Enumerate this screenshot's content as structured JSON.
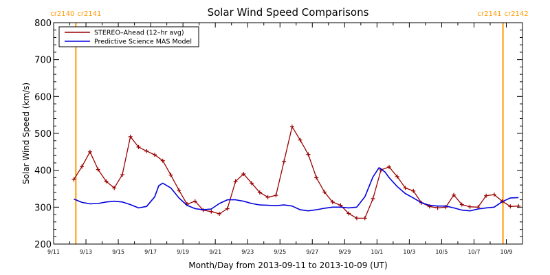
{
  "chart_data": {
    "type": "line",
    "title": "Solar Wind Speed Comparisons",
    "xlabel": "Month/Day from 2013-09-11 to 2013-10-09 (UT)",
    "ylabel": "Solar Wind Speed (km/s)",
    "xlim": [
      "2013-09-11",
      "2013-10-09"
    ],
    "ylim": [
      200,
      800
    ],
    "yticks": [
      200,
      300,
      400,
      500,
      600,
      700,
      800
    ],
    "xtick_labels": [
      "9/11",
      "9/13",
      "9/15",
      "9/17",
      "9/19",
      "9/21",
      "9/23",
      "9/25",
      "9/27",
      "9/29",
      "10/1",
      "10/3",
      "10/5",
      "10/7",
      "10/9"
    ],
    "grid": false,
    "legend_position": "top-left",
    "carrington_markers": [
      {
        "date": "2013-09-12T09:00",
        "label_left": "cr2140",
        "label_right": "cr2141",
        "color": "#ff9900"
      },
      {
        "date": "2013-10-08T19:00",
        "label_left": "cr2141",
        "label_right": "cr2142",
        "color": "#ff9900"
      }
    ],
    "series": [
      {
        "name": "STEREO–Ahead (12–hr avg)",
        "color": "#990000",
        "marker": "plus",
        "points": [
          [
            "2013-09-12T06:00",
            375
          ],
          [
            "2013-09-12T18:00",
            410
          ],
          [
            "2013-09-13T06:00",
            450
          ],
          [
            "2013-09-13T18:00",
            402
          ],
          [
            "2013-09-14T06:00",
            370
          ],
          [
            "2013-09-14T18:00",
            352
          ],
          [
            "2013-09-15T06:00",
            388
          ],
          [
            "2013-09-15T18:00",
            491
          ],
          [
            "2013-09-16T06:00",
            463
          ],
          [
            "2013-09-16T18:00",
            452
          ],
          [
            "2013-09-17T06:00",
            442
          ],
          [
            "2013-09-17T18:00",
            426
          ],
          [
            "2013-09-18T06:00",
            387
          ],
          [
            "2013-09-18T18:00",
            346
          ],
          [
            "2013-09-19T06:00",
            308
          ],
          [
            "2013-09-19T18:00",
            316
          ],
          [
            "2013-09-20T06:00",
            292
          ],
          [
            "2013-09-20T18:00",
            288
          ],
          [
            "2013-09-21T06:00",
            282
          ],
          [
            "2013-09-21T18:00",
            296
          ],
          [
            "2013-09-22T06:00",
            370
          ],
          [
            "2013-09-22T18:00",
            390
          ],
          [
            "2013-09-23T06:00",
            365
          ],
          [
            "2013-09-23T18:00",
            340
          ],
          [
            "2013-09-24T06:00",
            327
          ],
          [
            "2013-09-24T18:00",
            332
          ],
          [
            "2013-09-25T06:00",
            424
          ],
          [
            "2013-09-25T18:00",
            518
          ],
          [
            "2013-09-26T06:00",
            482
          ],
          [
            "2013-09-26T18:00",
            443
          ],
          [
            "2013-09-27T06:00",
            380
          ],
          [
            "2013-09-27T18:00",
            341
          ],
          [
            "2013-09-28T06:00",
            314
          ],
          [
            "2013-09-28T18:00",
            305
          ],
          [
            "2013-09-29T06:00",
            283
          ],
          [
            "2013-09-29T18:00",
            270
          ],
          [
            "2013-09-30T06:00",
            270
          ],
          [
            "2013-09-30T18:00",
            323
          ],
          [
            "2013-10-01T06:00",
            401
          ],
          [
            "2013-10-01T18:00",
            409
          ],
          [
            "2013-10-02T06:00",
            383
          ],
          [
            "2013-10-02T18:00",
            352
          ],
          [
            "2013-10-03T06:00",
            344
          ],
          [
            "2013-10-03T18:00",
            312
          ],
          [
            "2013-10-04T06:00",
            302
          ],
          [
            "2013-10-04T18:00",
            298
          ],
          [
            "2013-10-05T06:00",
            300
          ],
          [
            "2013-10-05T18:00",
            333
          ],
          [
            "2013-10-06T06:00",
            307
          ],
          [
            "2013-10-06T18:00",
            301
          ],
          [
            "2013-10-07T06:00",
            300
          ],
          [
            "2013-10-07T18:00",
            331
          ],
          [
            "2013-10-08T06:00",
            334
          ],
          [
            "2013-10-08T18:00",
            316
          ],
          [
            "2013-10-09T06:00",
            302
          ],
          [
            "2013-10-09T18:00",
            303
          ]
        ]
      },
      {
        "name": "Predictive Science MAS Model",
        "color": "#0000dd",
        "marker": "none",
        "points": [
          [
            "2013-09-12T06:00",
            322
          ],
          [
            "2013-09-12T18:00",
            313
          ],
          [
            "2013-09-13T06:00",
            309
          ],
          [
            "2013-09-13T18:00",
            310
          ],
          [
            "2013-09-14T06:00",
            314
          ],
          [
            "2013-09-14T18:00",
            316
          ],
          [
            "2013-09-15T06:00",
            314
          ],
          [
            "2013-09-15T18:00",
            307
          ],
          [
            "2013-09-16T06:00",
            298
          ],
          [
            "2013-09-16T18:00",
            302
          ],
          [
            "2013-09-17T06:00",
            328
          ],
          [
            "2013-09-17T12:00",
            358
          ],
          [
            "2013-09-17T18:00",
            365
          ],
          [
            "2013-09-18T06:00",
            352
          ],
          [
            "2013-09-18T18:00",
            325
          ],
          [
            "2013-09-19T06:00",
            305
          ],
          [
            "2013-09-19T18:00",
            296
          ],
          [
            "2013-09-20T06:00",
            293
          ],
          [
            "2013-09-20T18:00",
            295
          ],
          [
            "2013-09-21T06:00",
            310
          ],
          [
            "2013-09-21T18:00",
            320
          ],
          [
            "2013-09-22T06:00",
            320
          ],
          [
            "2013-09-22T18:00",
            316
          ],
          [
            "2013-09-23T06:00",
            310
          ],
          [
            "2013-09-23T18:00",
            306
          ],
          [
            "2013-09-24T06:00",
            305
          ],
          [
            "2013-09-24T18:00",
            304
          ],
          [
            "2013-09-25T06:00",
            306
          ],
          [
            "2013-09-25T18:00",
            303
          ],
          [
            "2013-09-26T06:00",
            293
          ],
          [
            "2013-09-26T18:00",
            290
          ],
          [
            "2013-09-27T06:00",
            293
          ],
          [
            "2013-09-27T18:00",
            297
          ],
          [
            "2013-09-28T06:00",
            300
          ],
          [
            "2013-09-28T18:00",
            300
          ],
          [
            "2013-09-29T06:00",
            298
          ],
          [
            "2013-09-29T18:00",
            300
          ],
          [
            "2013-09-30T06:00",
            328
          ],
          [
            "2013-09-30T18:00",
            382
          ],
          [
            "2013-10-01T03:00",
            407
          ],
          [
            "2013-10-01T12:00",
            395
          ],
          [
            "2013-10-01T18:00",
            380
          ],
          [
            "2013-10-02T06:00",
            356
          ],
          [
            "2013-10-02T18:00",
            337
          ],
          [
            "2013-10-03T06:00",
            325
          ],
          [
            "2013-10-03T18:00",
            312
          ],
          [
            "2013-10-04T06:00",
            305
          ],
          [
            "2013-10-04T18:00",
            303
          ],
          [
            "2013-10-05T06:00",
            303
          ],
          [
            "2013-10-05T18:00",
            298
          ],
          [
            "2013-10-06T06:00",
            292
          ],
          [
            "2013-10-06T18:00",
            290
          ],
          [
            "2013-10-07T06:00",
            295
          ],
          [
            "2013-10-07T18:00",
            298
          ],
          [
            "2013-10-08T06:00",
            300
          ],
          [
            "2013-10-08T18:00",
            315
          ],
          [
            "2013-10-09T06:00",
            325
          ],
          [
            "2013-10-09T18:00",
            326
          ]
        ]
      }
    ]
  }
}
